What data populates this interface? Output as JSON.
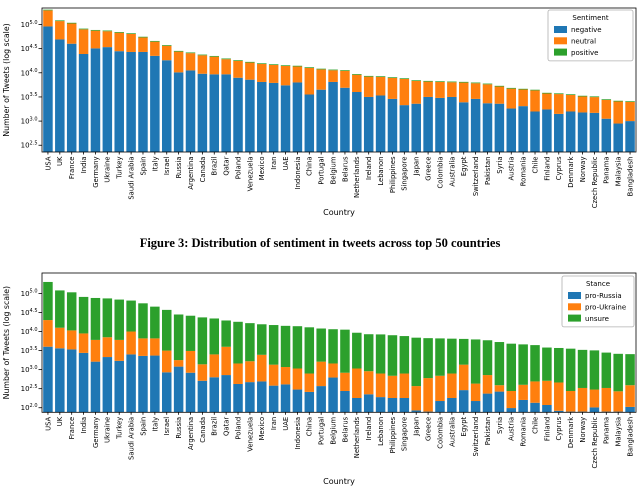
{
  "figure": {
    "caption": "Figure 3: Distribution of sentiment in tweets across top 50 countries"
  },
  "colors": {
    "blue": "#1f77b4",
    "orange": "#ff7f0e",
    "green": "#2ca02c",
    "legend_border": "#b0b0b0"
  },
  "chart_data": [
    {
      "type": "bar",
      "stacked": true,
      "log_scale": true,
      "xlabel": "Country",
      "ylabel": "Number of Tweets (log scale)",
      "legend_title": "Sentiment",
      "legend_position": "upper right",
      "grid": false,
      "ytick_exponents": [
        5.0,
        4.5,
        4.0,
        3.5,
        3.0,
        2.5
      ],
      "ylim_log10": [
        2.36,
        5.34
      ],
      "categories": [
        "USA",
        "UK",
        "France",
        "India",
        "Germany",
        "Ukraine",
        "Turkey",
        "Saudi Arabia",
        "Spain",
        "Italy",
        "Israel",
        "Russia",
        "Argentina",
        "Canada",
        "Brazil",
        "Qatar",
        "Poland",
        "Venezuela",
        "Mexico",
        "Iran",
        "UAE",
        "Indonesia",
        "China",
        "Portugal",
        "Belgium",
        "Belarus",
        "Netherlands",
        "Ireland",
        "Lebanon",
        "Philippines",
        "Singapore",
        "Japan",
        "Greece",
        "Colombia",
        "Australia",
        "Egypt",
        "Switzerland",
        "Pakistan",
        "Syria",
        "Austria",
        "Romania",
        "Chile",
        "Finland",
        "Cyprus",
        "Denmark",
        "Norway",
        "Czech Republic",
        "Panama",
        "Malaysia",
        "Bangladesh"
      ],
      "series": [
        {
          "name": "negative",
          "color": "#1f77b4",
          "values": [
            91000,
            49000,
            40000,
            24500,
            32000,
            34000,
            28000,
            27000,
            27000,
            22400,
            18200,
            10200,
            11200,
            9550,
            9300,
            9300,
            7900,
            7200,
            6460,
            6170,
            5500,
            6310,
            3550,
            4470,
            6460,
            4900,
            4000,
            3160,
            3390,
            2880,
            2140,
            2290,
            3160,
            3020,
            3160,
            2450,
            2880,
            2340,
            2290,
            1820,
            2040,
            1580,
            1740,
            1410,
            1580,
            1510,
            1480,
            1120,
            890,
            1000
          ]
        },
        {
          "name": "neutral",
          "color": "#ff7f0e",
          "values": [
            105000,
            68600,
            64860,
            54880,
            42480,
            38520,
            39620,
            36700,
            26900,
            21700,
            18060,
            17240,
            14280,
            13480,
            12260,
            9810,
            9740,
            9068,
            8730,
            8334,
            8318,
            7214,
            9092,
            7290,
            4810,
            6076,
            5114,
            5170,
            4842,
            4960,
            5308,
            4472,
            3406,
            3448,
            3210,
            3822,
            3196,
            3442,
            2904,
            2884,
            2468,
            2732,
            1984,
            2216,
            1899,
            1724,
            1656,
            1624,
            1658,
            1499
          ]
        },
        {
          "name": "positive",
          "color": "#2ca02c",
          "values": [
            4000,
            2400,
            2140,
            1620,
            1520,
            1480,
            1380,
            1300,
            1100,
            900,
            740,
            560,
            520,
            470,
            440,
            390,
            360,
            332,
            310,
            296,
            282,
            276,
            258,
            240,
            230,
            224,
            186,
            170,
            168,
            160,
            152,
            138,
            134,
            132,
            130,
            128,
            124,
            118,
            106,
            96,
            92,
            88,
            76,
            74,
            71,
            66,
            64,
            56,
            52,
            51
          ]
        }
      ]
    },
    {
      "type": "bar",
      "stacked": true,
      "log_scale": true,
      "xlabel": "Country",
      "ylabel": "Number of Tweets (log scale)",
      "legend_title": "Stance",
      "legend_position": "upper right",
      "grid": false,
      "ytick_exponents": [
        5.0,
        4.5,
        4.0,
        3.5,
        3.0,
        2.5,
        2.0
      ],
      "ylim_log10": [
        1.88,
        5.54
      ],
      "categories": [
        "USA",
        "UK",
        "France",
        "India",
        "Germany",
        "Ukraine",
        "Turkey",
        "Saudi Arabia",
        "Spain",
        "Italy",
        "Israel",
        "Russia",
        "Argentina",
        "Canada",
        "Brazil",
        "Qatar",
        "Poland",
        "Venezuela",
        "Mexico",
        "Iran",
        "UAE",
        "Indonesia",
        "China",
        "Portugal",
        "Belgium",
        "Belarus",
        "Netherlands",
        "Ireland",
        "Lebanon",
        "Philippines",
        "Singapore",
        "Japan",
        "Greece",
        "Colombia",
        "Australia",
        "Egypt",
        "Switzerland",
        "Pakistan",
        "Syria",
        "Austria",
        "Romania",
        "Chile",
        "Finland",
        "Cyprus",
        "Denmark",
        "Norway",
        "Czech Republic",
        "Panama",
        "Malaysia",
        "Bangladesh"
      ],
      "series": [
        {
          "name": "pro-Russia",
          "color": "#1f77b4",
          "values": [
            4000,
            3630,
            3390,
            2750,
            1620,
            2140,
            1700,
            2510,
            2290,
            2340,
            850,
            1200,
            830,
            510,
            630,
            720,
            420,
            470,
            490,
            380,
            410,
            300,
            260,
            370,
            620,
            275,
            180,
            225,
            190,
            180,
            180,
            85,
            70,
            150,
            180,
            290,
            150,
            235,
            265,
            98,
            160,
            135,
            118,
            83,
            66,
            63,
            102,
            63,
            71,
            105
          ]
        },
        {
          "name": "pro-Ukraine",
          "color": "#ff7f0e",
          "values": [
            16000,
            8970,
            7310,
            6160,
            4410,
            4940,
            4330,
            7490,
            4320,
            4270,
            2310,
            580,
            2260,
            870,
            1880,
            3260,
            1030,
            1190,
            1960,
            970,
            760,
            770,
            530,
            1250,
            830,
            555,
            890,
            685,
            600,
            510,
            610,
            285,
            530,
            540,
            610,
            1060,
            280,
            485,
            125,
            177,
            240,
            355,
            392,
            377,
            209,
            267,
            198,
            267,
            199,
            285
          ]
        },
        {
          "name": "unsure",
          "color": "#2ca02c",
          "values": [
            180000,
            107400,
            96300,
            72090,
            69970,
            66920,
            62970,
            55000,
            48390,
            38390,
            33840,
            26220,
            22910,
            22120,
            19490,
            15520,
            16550,
            14940,
            13050,
            13450,
            12930,
            12730,
            12110,
            10380,
            10050,
            10370,
            8230,
            7590,
            7610,
            7310,
            6810,
            6530,
            6100,
            5910,
            5710,
            5050,
            5770,
            5180,
            4910,
            4525,
            4200,
            3910,
            3290,
            3240,
            3275,
            2970,
            2900,
            2470,
            2330,
            2160
          ]
        }
      ]
    }
  ]
}
